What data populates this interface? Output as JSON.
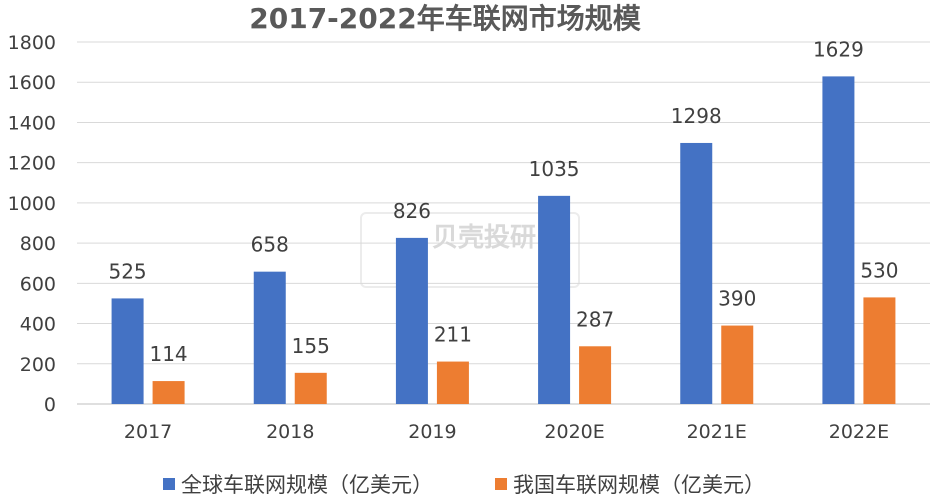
{
  "chart_data": {
    "type": "bar",
    "title": "2017-2022年车联网市场规模",
    "categories": [
      "2017",
      "2018",
      "2019",
      "2020E",
      "2021E",
      "2022E"
    ],
    "series": [
      {
        "name": "全球车联网规模（亿美元）",
        "color": "#4472C4",
        "values": [
          525,
          658,
          826,
          1035,
          1298,
          1629
        ]
      },
      {
        "name": "我国车联网规模（亿美元）",
        "color": "#ED7D31",
        "values": [
          114,
          155,
          211,
          287,
          390,
          530
        ]
      }
    ],
    "xlabel": "",
    "ylabel": "",
    "ylim": [
      0,
      1800
    ],
    "yticks": [
      0,
      200,
      400,
      600,
      800,
      1000,
      1200,
      1400,
      1600,
      1800
    ],
    "grid": true,
    "legend": "bottom",
    "watermark": "贝壳投研"
  }
}
